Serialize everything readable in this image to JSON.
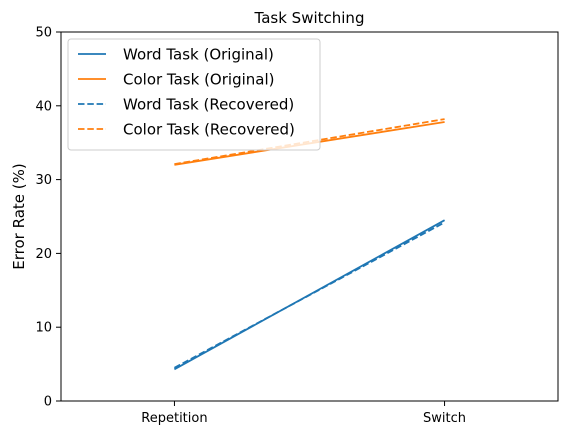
{
  "chart_data": {
    "type": "line",
    "title": "Task Switching",
    "xlabel": "",
    "ylabel": "Error Rate (%)",
    "categories": [
      "Repetition",
      "Switch"
    ],
    "ylim": [
      0,
      50
    ],
    "yticks": [
      0,
      10,
      20,
      30,
      40,
      50
    ],
    "grid": false,
    "legend_position": "top-left",
    "series": [
      {
        "name": "Word Task (Original)",
        "values": [
          4.3,
          24.5
        ],
        "color": "#1f77b4",
        "style": "solid"
      },
      {
        "name": "Color Task (Original)",
        "values": [
          32.0,
          37.8
        ],
        "color": "#ff7f0e",
        "style": "solid"
      },
      {
        "name": "Word Task (Recovered)",
        "values": [
          4.5,
          24.2
        ],
        "color": "#1f77b4",
        "style": "dashed"
      },
      {
        "name": "Color Task (Recovered)",
        "values": [
          32.1,
          38.2
        ],
        "color": "#ff7f0e",
        "style": "dashed"
      }
    ]
  }
}
